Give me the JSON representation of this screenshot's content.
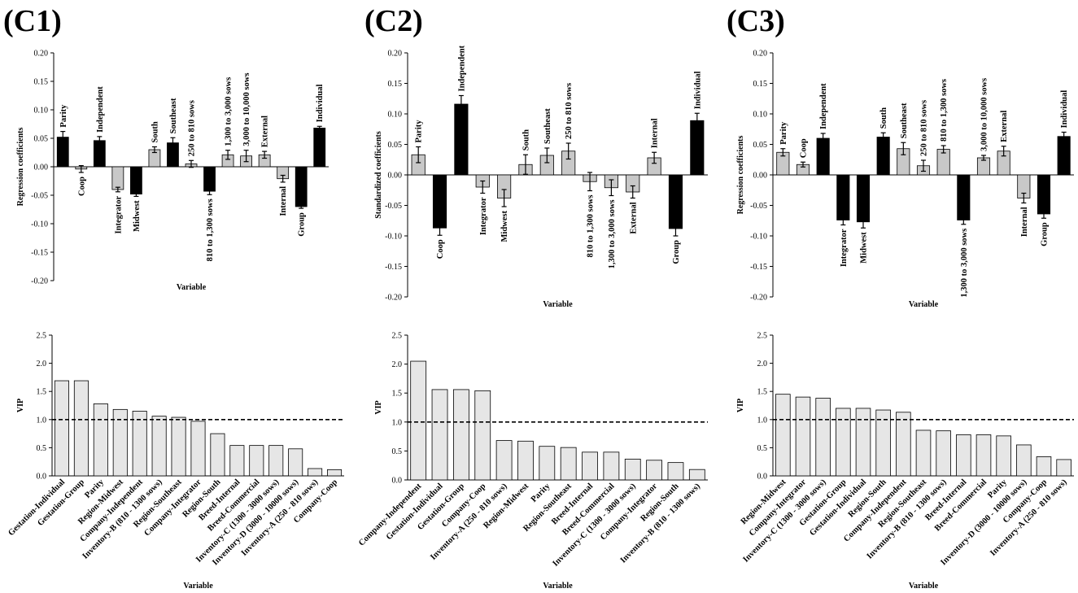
{
  "figure": {
    "colors": {
      "black_bar": "#000000",
      "gray_bar": "#c8c8c8",
      "vip_bar": "#e6e6e6",
      "axis": "#000000"
    }
  },
  "chart_data": [
    {
      "id": "c1-coef",
      "panel_label": "(C1)",
      "type": "bar",
      "title": "",
      "xlabel": "Variable",
      "ylabel": "Regression coefficients",
      "ylim": [
        -0.2,
        0.2
      ],
      "yticks": [
        -0.2,
        -0.15,
        -0.1,
        -0.05,
        0.0,
        0.05,
        0.1,
        0.15,
        0.2
      ],
      "ytick_labels": [
        "-0.20",
        "-0.15",
        "-0.10",
        "-0.05",
        "0.00",
        "0.05",
        "0.10",
        "0.15",
        "0.20"
      ],
      "error_bars": true,
      "categories": [
        "Parity",
        "Coop",
        "Independent",
        "Integrator",
        "Midwest",
        "South",
        "Southeast",
        "250 to 810 sows",
        "810 to 1,300 sows",
        "1,300 to 3,000 sows",
        "3,000 to 10,000 sows",
        "External",
        "Internal",
        "Group",
        "Individual"
      ],
      "values": [
        0.052,
        -0.004,
        0.046,
        -0.04,
        -0.048,
        0.03,
        0.042,
        0.005,
        -0.043,
        0.021,
        0.019,
        0.021,
        -0.021,
        -0.07,
        0.068
      ],
      "errors": [
        0.01,
        0.006,
        0.007,
        0.004,
        0.004,
        0.005,
        0.009,
        0.006,
        0.006,
        0.008,
        0.01,
        0.006,
        0.006,
        0.003,
        0.003
      ],
      "colors": [
        "black",
        "gray",
        "black",
        "gray",
        "black",
        "gray",
        "black",
        "gray",
        "black",
        "gray",
        "gray",
        "gray",
        "gray",
        "black",
        "black"
      ]
    },
    {
      "id": "c2-coef",
      "panel_label": "(C2)",
      "type": "bar",
      "title": "",
      "xlabel": "Variable",
      "ylabel": "Standardized coefficients",
      "ylim": [
        -0.2,
        0.2
      ],
      "yticks": [
        -0.2,
        -0.15,
        -0.1,
        -0.05,
        0.0,
        0.05,
        0.1,
        0.15,
        0.2
      ],
      "ytick_labels": [
        "-0.20",
        "-0.15",
        "-0.10",
        "-0.05",
        "0.00",
        "0.05",
        "0.10",
        "0.15",
        "0.20"
      ],
      "error_bars": true,
      "categories": [
        "Parity",
        "Coop",
        "Independent",
        "Integrator",
        "Midwest",
        "South",
        "Southeast",
        "250 to 810 sows",
        "810 to 1,300 sows",
        "1,300 to 3,000 sows",
        "External",
        "Internal",
        "Group",
        "Individual"
      ],
      "values": [
        0.033,
        -0.087,
        0.116,
        -0.02,
        -0.038,
        0.017,
        0.032,
        0.039,
        -0.011,
        -0.021,
        -0.028,
        0.028,
        -0.088,
        0.089
      ],
      "errors": [
        0.013,
        0.012,
        0.014,
        0.01,
        0.014,
        0.016,
        0.012,
        0.013,
        0.015,
        0.013,
        0.01,
        0.009,
        0.012,
        0.012
      ],
      "colors": [
        "gray",
        "black",
        "black",
        "gray",
        "gray",
        "gray",
        "gray",
        "gray",
        "gray",
        "gray",
        "gray",
        "gray",
        "black",
        "black"
      ]
    },
    {
      "id": "c3-coef",
      "panel_label": "(C3)",
      "type": "bar",
      "title": "",
      "xlabel": "Variable",
      "ylabel": "Regression coefficients",
      "ylim": [
        -0.2,
        0.2
      ],
      "yticks": [
        -0.2,
        -0.15,
        -0.1,
        -0.05,
        0.0,
        0.05,
        0.1,
        0.15,
        0.2
      ],
      "ytick_labels": [
        "-0.20",
        "-0.15",
        "-0.10",
        "-0.05",
        "0.00",
        "0.05",
        "0.10",
        "0.15",
        "0.20"
      ],
      "error_bars": true,
      "categories": [
        "Parity",
        "Coop",
        "Independent",
        "Integrator",
        "Midwest",
        "South",
        "Southeast",
        "250 to 810 sows",
        "810 to 1,300 sows",
        "1,300 to 3,000 sows",
        "3,000 to 10,000 sows",
        "External",
        "Internal",
        "Group",
        "Individual"
      ],
      "values": [
        0.037,
        0.017,
        0.06,
        -0.074,
        -0.077,
        0.062,
        0.043,
        0.015,
        0.042,
        -0.074,
        0.028,
        0.039,
        -0.038,
        -0.064,
        0.063
      ],
      "errors": [
        0.006,
        0.004,
        0.008,
        0.008,
        0.01,
        0.007,
        0.01,
        0.009,
        0.006,
        0.007,
        0.004,
        0.008,
        0.008,
        0.007,
        0.007
      ],
      "colors": [
        "gray",
        "gray",
        "black",
        "black",
        "black",
        "black",
        "gray",
        "gray",
        "gray",
        "black",
        "gray",
        "gray",
        "gray",
        "black",
        "black"
      ]
    },
    {
      "id": "c1-vip",
      "panel_label": "",
      "type": "bar",
      "title": "",
      "xlabel": "Variable",
      "ylabel": "VIP",
      "ylim": [
        0,
        2.5
      ],
      "yticks": [
        0,
        0.5,
        1.0,
        1.5,
        2.0,
        2.5
      ],
      "ytick_labels": [
        "0.0",
        "0.5",
        "1.0",
        "1.5",
        "2.0",
        "2.5"
      ],
      "reference_line": 1.0,
      "error_bars": false,
      "categories": [
        "Gestation-Individual",
        "Gestation-Group",
        "Parity",
        "Region-Midwest",
        "Company-Independent",
        "Inventory-B (810 - 1300 sows)",
        "Region-Southeast",
        "Company-Integrator",
        "Region-South",
        "Breed-Internal",
        "Breed-Commercial",
        "Inventory-C (1300 - 3000 sows)",
        "Inventory-D (3000 - 10000 sows)",
        "Inventory-A (250 - 810 sows)",
        "Company-Coop"
      ],
      "values": [
        1.69,
        1.69,
        1.28,
        1.18,
        1.15,
        1.06,
        1.04,
        0.97,
        0.75,
        0.54,
        0.54,
        0.54,
        0.48,
        0.13,
        0.11
      ]
    },
    {
      "id": "c2-vip",
      "panel_label": "",
      "type": "bar",
      "title": "",
      "xlabel": "Variable",
      "ylabel": "VIP",
      "ylim": [
        0,
        2.5
      ],
      "yticks": [
        0,
        0.5,
        1.0,
        1.5,
        2.0,
        2.5
      ],
      "ytick_labels": [
        "0.0",
        "0.5",
        "1.0",
        "1.5",
        "2.0",
        "2.5"
      ],
      "reference_line": 1.0,
      "error_bars": false,
      "categories": [
        "Company-Independent",
        "Gestation-Individual",
        "Gestation-Group",
        "Company-Coop",
        "Inventory-A (250 - 810 sows)",
        "Region-Midwest",
        "Parity",
        "Region-Southeast",
        "Breed-Internal",
        "Breed-Commercial",
        "Inventory-C (1300 - 3000 sows)",
        "Company-Integrator",
        "Region-South",
        "Inventory-B (810 - 1300 sows)"
      ],
      "values": [
        2.05,
        1.56,
        1.56,
        1.54,
        0.68,
        0.67,
        0.58,
        0.56,
        0.48,
        0.48,
        0.36,
        0.34,
        0.3,
        0.18
      ]
    },
    {
      "id": "c3-vip",
      "panel_label": "",
      "type": "bar",
      "title": "",
      "xlabel": "Variable",
      "ylabel": "VIP",
      "ylim": [
        0,
        2.5
      ],
      "yticks": [
        0,
        0.5,
        1.0,
        1.5,
        2.0,
        2.5
      ],
      "ytick_labels": [
        "0.0",
        "0.5",
        "1.0",
        "1.5",
        "2.0",
        "2.5"
      ],
      "reference_line": 1.0,
      "error_bars": false,
      "categories": [
        "Region-Midwest",
        "Company-Integrator",
        "Inventory-C (1300 - 3000 sows)",
        "Gestation-Group",
        "Gestation-Individual",
        "Region-South",
        "Company-Independent",
        "Region-Southeast",
        "Inventory-B (810 - 1300 sows)",
        "Breed-Internal",
        "Breed-Commercial",
        "Parity",
        "Inventory-D (3000 - 10000 sows)",
        "Company-Coop",
        "Inventory-A (250 - 810 sows)"
      ],
      "values": [
        1.45,
        1.4,
        1.38,
        1.2,
        1.2,
        1.17,
        1.13,
        0.81,
        0.8,
        0.73,
        0.73,
        0.71,
        0.55,
        0.34,
        0.29
      ]
    }
  ]
}
